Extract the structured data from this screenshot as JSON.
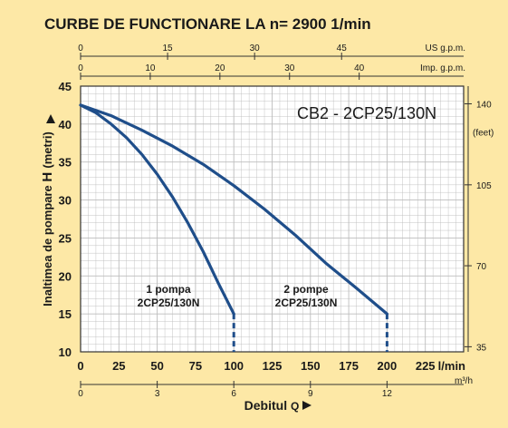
{
  "colors": {
    "background": "#fde8a6",
    "plot_background": "#ffffff",
    "grid": "#bdbdbd",
    "curve": "#1f4e8a",
    "text": "#1a1a1a"
  },
  "chart_data": {
    "type": "line",
    "title": "CURBE DE FUNCTIONARE LA n= 2900  1/min",
    "subtitle": "CB2 - 2CP25/130N",
    "ylabel": "Inaltimea de pompare",
    "ylabel_symbol": "H",
    "ylabel_unit": "(metri)",
    "xlabel": "Debitul",
    "xlabel_symbol": "Q",
    "xlim": [
      0,
      250
    ],
    "ylim": [
      10,
      45
    ],
    "grid": true,
    "x_ticks": [
      0,
      25,
      50,
      75,
      100,
      125,
      150,
      175,
      200,
      225
    ],
    "x_unit": "l/min",
    "y_ticks": [
      10,
      15,
      20,
      25,
      30,
      35,
      40,
      45
    ],
    "top_axes": [
      {
        "label": "US g.p.m.",
        "ticks": [
          "0",
          "15",
          "30",
          "45"
        ],
        "values_lmin": [
          0,
          56.78,
          113.56,
          170.34
        ]
      },
      {
        "label": "Imp. g.p.m.",
        "ticks": [
          "0",
          "10",
          "20",
          "30",
          "40"
        ],
        "values_lmin": [
          0,
          45.46,
          90.92,
          136.38,
          181.84
        ]
      }
    ],
    "bottom_axis_m3h": {
      "label": "m³/h",
      "ticks": [
        "0",
        "3",
        "6",
        "9",
        "12"
      ],
      "values_lmin": [
        0,
        50,
        100,
        150,
        200
      ]
    },
    "right_axis_feet": {
      "label": "(feet)",
      "ticks": [
        "35",
        "70",
        "105",
        "140"
      ],
      "values_m": [
        10.67,
        21.34,
        32.0,
        42.67
      ]
    },
    "series": [
      {
        "name": "1 pompa",
        "label_lines": [
          "1 pompa",
          "2CP25/130N"
        ],
        "x": [
          0,
          10,
          20,
          30,
          40,
          50,
          60,
          70,
          80,
          90,
          100
        ],
        "y": [
          42.5,
          41.5,
          40.0,
          38.2,
          36.0,
          33.4,
          30.4,
          27.0,
          23.2,
          19.0,
          15.0
        ],
        "cutoff_x": 100
      },
      {
        "name": "2 pompe",
        "label_lines": [
          "2 pompe",
          "2CP25/130N"
        ],
        "x": [
          0,
          20,
          40,
          60,
          80,
          100,
          120,
          140,
          160,
          180,
          200
        ],
        "y": [
          42.5,
          41.1,
          39.2,
          37.1,
          34.7,
          31.9,
          28.8,
          25.4,
          21.7,
          18.4,
          15.0
        ],
        "cutoff_x": 200
      }
    ]
  }
}
